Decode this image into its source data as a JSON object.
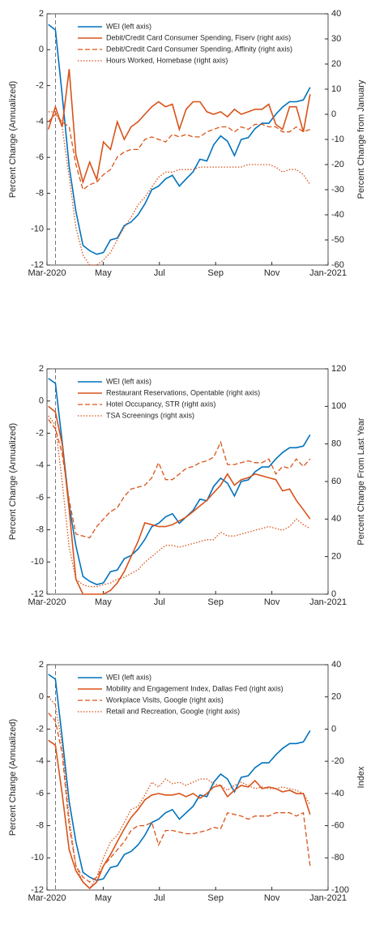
{
  "chart_data": [
    {
      "type": "line",
      "ylabel": "Percent Change (Annualized)",
      "y2label": "Percent Change from January",
      "xlim": [
        0,
        10
      ],
      "xticks": [
        {
          "value": 0,
          "label": "Mar-2020"
        },
        {
          "value": 2,
          "label": "May"
        },
        {
          "value": 4,
          "label": "Jul"
        },
        {
          "value": 6,
          "label": "Sep"
        },
        {
          "value": 8,
          "label": "Nov"
        },
        {
          "value": 10,
          "label": "Jan-2021"
        }
      ],
      "ylim": [
        -12,
        2
      ],
      "yticks": [
        -12,
        -10,
        -8,
        -6,
        -4,
        -2,
        0,
        2
      ],
      "y2lim": [
        -60,
        40
      ],
      "y2ticks": [
        -60,
        -50,
        -40,
        -30,
        -20,
        -10,
        0,
        10,
        20,
        30,
        40
      ],
      "vline": 0.3,
      "legend": "upper center",
      "x": [
        0.05,
        0.3,
        0.54,
        0.79,
        1.03,
        1.28,
        1.52,
        1.77,
        2.01,
        2.26,
        2.5,
        2.75,
        2.99,
        3.24,
        3.48,
        3.73,
        3.97,
        4.22,
        4.46,
        4.71,
        4.95,
        5.2,
        5.44,
        5.69,
        5.93,
        6.18,
        6.42,
        6.67,
        6.91,
        7.16,
        7.4,
        7.65,
        7.89,
        8.14,
        8.38,
        8.63,
        8.87,
        9.12,
        9.36
      ],
      "series": [
        {
          "name": "WEI (left axis)",
          "color": "#0072bd",
          "style": "solid",
          "axis": "y",
          "values": [
            1.4,
            1.1,
            -2.5,
            -6.5,
            -9,
            -10.9,
            -11.2,
            -11.4,
            -11.3,
            -10.6,
            -10.5,
            -9.8,
            -9.6,
            -9.2,
            -8.6,
            -7.8,
            -7.6,
            -7.2,
            -7.0,
            -7.6,
            -7.2,
            -6.8,
            -6.1,
            -6.2,
            -5.3,
            -4.8,
            -5.1,
            -5.9,
            -5.0,
            -4.9,
            -4.4,
            -4.1,
            -4.1,
            -3.6,
            -3.2,
            -2.9,
            -2.9,
            -2.8,
            -2.1
          ]
        },
        {
          "name": "Debit/Credit Card Consumer Spending, Fiserv (right axis)",
          "color": "#d95319",
          "style": "solid",
          "axis": "y2",
          "values": [
            -6,
            3,
            -5,
            18,
            -16,
            -27,
            -19,
            -26,
            -11,
            -14,
            -3,
            -10,
            -5,
            -3,
            0,
            3,
            5,
            3,
            4,
            -6,
            2,
            5,
            5,
            1,
            0,
            1,
            -1,
            2,
            0,
            1,
            2,
            2,
            4,
            -4,
            -6,
            3,
            3,
            -7,
            8
          ]
        },
        {
          "name": "Debit/Credit Card Consumer Spending, Affinity (right axis)",
          "color": "#d95319",
          "style": "dashed",
          "axis": "y2",
          "values": [
            -3,
            0,
            -3,
            -5,
            -20,
            -30,
            -28,
            -27,
            -24,
            -22,
            -17,
            -15,
            -14,
            -14,
            -10,
            -9,
            -10,
            -11,
            -8,
            -9,
            -8,
            -9,
            -9,
            -7,
            -6,
            -5,
            -5,
            -7,
            -5,
            -6,
            -4,
            -4,
            -5,
            -5,
            -7,
            -7,
            -5,
            -7,
            -6
          ]
        },
        {
          "name": "Hours Worked, Homebase (right axis)",
          "color": "#d95319",
          "style": "dotted",
          "axis": "y2",
          "values": [
            1,
            1,
            -5,
            -25,
            -45,
            -56,
            -60,
            -60,
            -58,
            -55,
            -50,
            -45,
            -41,
            -36,
            -33,
            -29,
            -25,
            -23,
            -23,
            -22,
            -22,
            -22,
            -21,
            -21,
            -21,
            -21,
            -21,
            -21,
            -21,
            -20,
            -20,
            -20,
            -20,
            -21,
            -23,
            -22,
            -22,
            -24,
            -28
          ]
        }
      ]
    },
    {
      "type": "line",
      "ylabel": "Percent Change (Annualized)",
      "y2label": "Percent Change From Last Year",
      "xlim": [
        0,
        10
      ],
      "xticks": [
        {
          "value": 0,
          "label": "Mar-2020"
        },
        {
          "value": 2,
          "label": "May"
        },
        {
          "value": 4,
          "label": "Jul"
        },
        {
          "value": 6,
          "label": "Sep"
        },
        {
          "value": 8,
          "label": "Nov"
        },
        {
          "value": 10,
          "label": "Jan-2021"
        }
      ],
      "ylim": [
        -12,
        2
      ],
      "yticks": [
        -12,
        -10,
        -8,
        -6,
        -4,
        -2,
        0,
        2
      ],
      "y2lim": [
        0,
        120
      ],
      "y2ticks": [
        0,
        20,
        40,
        60,
        80,
        100,
        120
      ],
      "vline": 0.3,
      "legend": "upper center",
      "x": [
        0.05,
        0.3,
        0.54,
        0.79,
        1.03,
        1.28,
        1.52,
        1.77,
        2.01,
        2.26,
        2.5,
        2.75,
        2.99,
        3.24,
        3.48,
        3.73,
        3.97,
        4.22,
        4.46,
        4.71,
        4.95,
        5.2,
        5.44,
        5.69,
        5.93,
        6.18,
        6.42,
        6.67,
        6.91,
        7.16,
        7.4,
        7.65,
        7.89,
        8.14,
        8.38,
        8.63,
        8.87,
        9.12,
        9.36
      ],
      "series": [
        {
          "name": "WEI (left axis)",
          "color": "#0072bd",
          "style": "solid",
          "axis": "y",
          "values": [
            1.4,
            1.1,
            -2.5,
            -6.5,
            -9,
            -10.9,
            -11.2,
            -11.4,
            -11.3,
            -10.6,
            -10.5,
            -9.8,
            -9.6,
            -9.2,
            -8.6,
            -7.8,
            -7.6,
            -7.2,
            -7.0,
            -7.6,
            -7.2,
            -6.8,
            -6.1,
            -6.2,
            -5.3,
            -4.8,
            -5.1,
            -5.9,
            -5.0,
            -4.9,
            -4.4,
            -4.1,
            -4.1,
            -3.6,
            -3.2,
            -2.9,
            -2.9,
            -2.8,
            -2.1
          ]
        },
        {
          "name": "Restaurant Reservations, Opentable (right axis)",
          "color": "#d95319",
          "style": "solid",
          "axis": "y2",
          "values": [
            100,
            97,
            80,
            45,
            8,
            0,
            0,
            0,
            0,
            2,
            6,
            12,
            20,
            28,
            38,
            37,
            36,
            36,
            37,
            39,
            41,
            44,
            47,
            50,
            54,
            58,
            64,
            58,
            61,
            62,
            64,
            63,
            62,
            61,
            55,
            56,
            50,
            45,
            40
          ]
        },
        {
          "name": "Hotel Occupancy, STR (right axis)",
          "color": "#d95319",
          "style": "dashed",
          "axis": "y2",
          "values": [
            93,
            88,
            75,
            50,
            32,
            31,
            30,
            36,
            40,
            44,
            46,
            52,
            56,
            57,
            58,
            62,
            70,
            61,
            61,
            64,
            67,
            68,
            70,
            71,
            73,
            81,
            69,
            69,
            70,
            71,
            70,
            70,
            72,
            64,
            68,
            67,
            72,
            68,
            72
          ]
        },
        {
          "name": "TSA Screenings (right axis)",
          "color": "#d95319",
          "style": "dotted",
          "axis": "y2",
          "values": [
            95,
            90,
            60,
            25,
            8,
            5,
            4,
            4,
            5,
            6,
            8,
            9,
            11,
            13,
            17,
            20,
            23,
            26,
            26,
            25,
            26,
            27,
            28,
            29,
            29,
            33,
            31,
            31,
            32,
            33,
            34,
            35,
            36,
            35,
            34,
            36,
            40,
            37,
            35
          ]
        }
      ]
    },
    {
      "type": "line",
      "ylabel": "Percent Change (Annualized)",
      "y2label": "Index",
      "xlim": [
        0,
        10
      ],
      "xticks": [
        {
          "value": 0,
          "label": "Mar-2020"
        },
        {
          "value": 2,
          "label": "May"
        },
        {
          "value": 4,
          "label": "Jul"
        },
        {
          "value": 6,
          "label": "Sep"
        },
        {
          "value": 8,
          "label": "Nov"
        },
        {
          "value": 10,
          "label": "Jan-2021"
        }
      ],
      "ylim": [
        -12,
        2
      ],
      "yticks": [
        -12,
        -10,
        -8,
        -6,
        -4,
        -2,
        0,
        2
      ],
      "y2lim": [
        -100,
        40
      ],
      "y2ticks": [
        -100,
        -80,
        -60,
        -40,
        -20,
        0,
        20,
        40
      ],
      "vline": 0.3,
      "legend": "upper center",
      "x": [
        0.05,
        0.3,
        0.54,
        0.79,
        1.03,
        1.28,
        1.52,
        1.77,
        2.01,
        2.26,
        2.5,
        2.75,
        2.99,
        3.24,
        3.48,
        3.73,
        3.97,
        4.22,
        4.46,
        4.71,
        4.95,
        5.2,
        5.44,
        5.69,
        5.93,
        6.18,
        6.42,
        6.67,
        6.91,
        7.16,
        7.4,
        7.65,
        7.89,
        8.14,
        8.38,
        8.63,
        8.87,
        9.12,
        9.36
      ],
      "series": [
        {
          "name": "WEI (left axis)",
          "color": "#0072bd",
          "style": "solid",
          "axis": "y",
          "values": [
            1.4,
            1.1,
            -2.5,
            -6.5,
            -9,
            -10.9,
            -11.2,
            -11.4,
            -11.3,
            -10.6,
            -10.5,
            -9.8,
            -9.6,
            -9.2,
            -8.6,
            -7.8,
            -7.6,
            -7.2,
            -7.0,
            -7.6,
            -7.2,
            -6.8,
            -6.1,
            -6.2,
            -5.3,
            -4.8,
            -5.1,
            -5.9,
            -5.0,
            -4.9,
            -4.4,
            -4.1,
            -4.1,
            -3.6,
            -3.2,
            -2.9,
            -2.9,
            -2.8,
            -2.1
          ]
        },
        {
          "name": "Mobility and Engagement Index, Dallas Fed (right axis)",
          "color": "#d95319",
          "style": "solid",
          "axis": "y2",
          "values": [
            -7,
            -10,
            -40,
            -75,
            -88,
            -95,
            -99,
            -95,
            -85,
            -78,
            -70,
            -62,
            -55,
            -50,
            -44,
            -41,
            -40,
            -41,
            -41,
            -40,
            -42,
            -40,
            -43,
            -40,
            -36,
            -35,
            -42,
            -38,
            -35,
            -36,
            -32,
            -37,
            -36,
            -37,
            -39,
            -38,
            -40,
            -40,
            -53
          ]
        },
        {
          "name": "Workplace Visits, Google (right axis)",
          "color": "#d95319",
          "style": "dashed",
          "axis": "y2",
          "values": [
            10,
            5,
            -15,
            -60,
            -85,
            -92,
            -95,
            -92,
            -85,
            -80,
            -75,
            -70,
            -63,
            -60,
            -60,
            -58,
            -72,
            -63,
            -63,
            -64,
            -65,
            -65,
            -64,
            -63,
            -61,
            -62,
            -52,
            -53,
            -54,
            -56,
            -54,
            -54,
            -54,
            -52,
            -52,
            -52,
            -54,
            -52,
            -85
          ]
        },
        {
          "name": "Retail and Recreation, Google (right axis)",
          "color": "#d95319",
          "style": "dotted",
          "axis": "y2",
          "values": [
            20,
            15,
            -10,
            -55,
            -85,
            -95,
            -99,
            -92,
            -80,
            -70,
            -66,
            -58,
            -50,
            -48,
            -41,
            -33,
            -36,
            -31,
            -34,
            -33,
            -35,
            -33,
            -31,
            -31,
            -34,
            -35,
            -38,
            -35,
            -33,
            -35,
            -37,
            -36,
            -37,
            -37,
            -36,
            -37,
            -38,
            -40,
            -47
          ]
        }
      ]
    }
  ]
}
